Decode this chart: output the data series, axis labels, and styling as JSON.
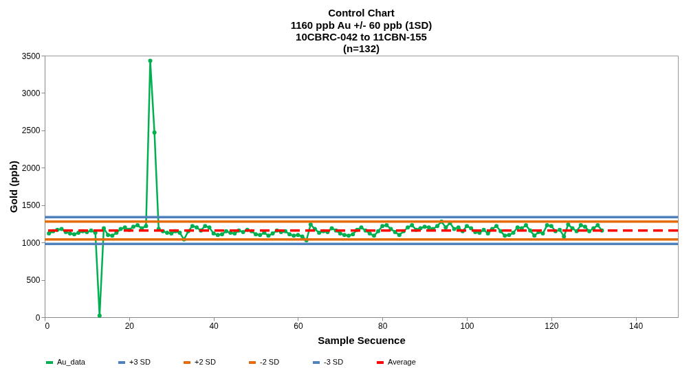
{
  "chart_data": {
    "type": "line",
    "title": "Control Chart",
    "subtitle": "1160 ppb Au +/- 60 ppb (1SD)\n10CBRC-042 to 11CBN-155\n(n=132)",
    "xlabel": "Sample Secuence",
    "ylabel": "Gold  (ppb)",
    "x": [
      1,
      2,
      3,
      4,
      5,
      6,
      7,
      8,
      9,
      10,
      11,
      12,
      13,
      14,
      15,
      16,
      17,
      18,
      19,
      20,
      21,
      22,
      23,
      24,
      25,
      26,
      27,
      28,
      29,
      30,
      31,
      32,
      33,
      34,
      35,
      36,
      37,
      38,
      39,
      40,
      41,
      42,
      43,
      44,
      45,
      46,
      47,
      48,
      49,
      50,
      51,
      52,
      53,
      54,
      55,
      56,
      57,
      58,
      59,
      60,
      61,
      62,
      63,
      64,
      65,
      66,
      67,
      68,
      69,
      70,
      71,
      72,
      73,
      74,
      75,
      76,
      77,
      78,
      79,
      80,
      81,
      82,
      83,
      84,
      85,
      86,
      87,
      88,
      89,
      90,
      91,
      92,
      93,
      94,
      95,
      96,
      97,
      98,
      99,
      100,
      101,
      102,
      103,
      104,
      105,
      106,
      107,
      108,
      109,
      110,
      111,
      112,
      113,
      114,
      115,
      116,
      117,
      118,
      119,
      120,
      121,
      122,
      123,
      124,
      125,
      126,
      127,
      128,
      129,
      130,
      131,
      132
    ],
    "series": [
      {
        "name": "Au_data",
        "color": "#00b050",
        "values": [
          1120,
          1150,
          1170,
          1180,
          1140,
          1120,
          1110,
          1130,
          1150,
          1140,
          1160,
          1130,
          20,
          1190,
          1100,
          1090,
          1130,
          1180,
          1200,
          1170,
          1210,
          1230,
          1190,
          1220,
          3430,
          2470,
          1180,
          1150,
          1130,
          1120,
          1150,
          1130,
          1040,
          1150,
          1220,
          1200,
          1160,
          1220,
          1200,
          1120,
          1100,
          1110,
          1150,
          1130,
          1120,
          1160,
          1140,
          1170,
          1150,
          1110,
          1100,
          1130,
          1090,
          1120,
          1160,
          1140,
          1150,
          1110,
          1090,
          1100,
          1080,
          1030,
          1240,
          1180,
          1130,
          1150,
          1140,
          1190,
          1160,
          1120,
          1100,
          1090,
          1110,
          1170,
          1200,
          1160,
          1120,
          1090,
          1150,
          1220,
          1230,
          1180,
          1140,
          1100,
          1150,
          1200,
          1230,
          1170,
          1190,
          1210,
          1200,
          1180,
          1220,
          1280,
          1200,
          1260,
          1180,
          1200,
          1150,
          1220,
          1190,
          1140,
          1130,
          1170,
          1120,
          1180,
          1220,
          1150,
          1090,
          1100,
          1130,
          1200,
          1190,
          1230,
          1160,
          1090,
          1140,
          1120,
          1230,
          1220,
          1150,
          1170,
          1080,
          1240,
          1190,
          1150,
          1230,
          1210,
          1150,
          1190,
          1230,
          1160
        ]
      }
    ],
    "ref_lines": [
      {
        "axis": "y",
        "value": 1340,
        "label": "+3 SD",
        "color": "#4f81bd",
        "line_style": "solid"
      },
      {
        "axis": "y",
        "value": 1280,
        "label": "+2 SD",
        "color": "#e46c0a",
        "line_style": "solid"
      },
      {
        "axis": "y",
        "value": 1040,
        "label": "-2 SD",
        "color": "#e46c0a",
        "line_style": "solid"
      },
      {
        "axis": "y",
        "value": 980,
        "label": "-3 SD",
        "color": "#4f81bd",
        "line_style": "solid"
      },
      {
        "axis": "y",
        "value": 1160,
        "label": "Average",
        "color": "#ff0000",
        "line_style": "dashed"
      }
    ],
    "xlim": [
      0,
      150
    ],
    "xticks": [
      0,
      20,
      40,
      60,
      80,
      100,
      120,
      140
    ],
    "ylim": [
      0,
      3500
    ],
    "yticks": [
      0,
      500,
      1000,
      1500,
      2000,
      2500,
      3000,
      3500
    ],
    "grid": false,
    "legend": "bottom",
    "marker": "circle",
    "line_style": "solid"
  }
}
